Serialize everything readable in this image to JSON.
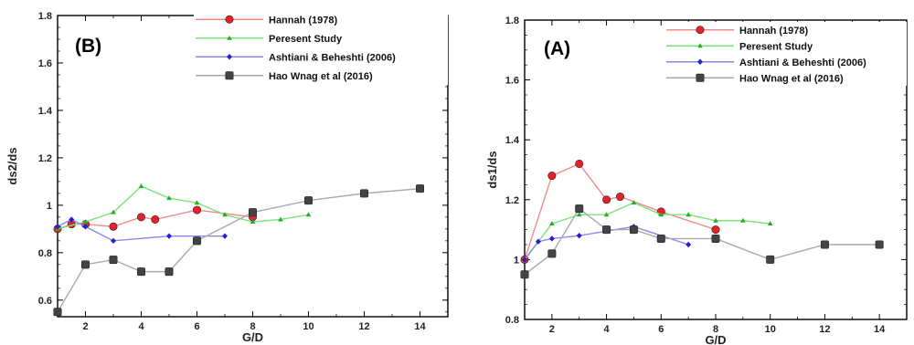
{
  "chart_data": [
    {
      "type": "line",
      "panel_label": "(B)",
      "xlabel": "G/D",
      "ylabel": "ds2/ds",
      "xlim": [
        1,
        15
      ],
      "ylim": [
        0.53,
        1.8
      ],
      "xticks": [
        2,
        4,
        6,
        8,
        10,
        12,
        14
      ],
      "yticks": [
        0.6,
        0.8,
        1,
        1.2,
        1.4,
        1.6,
        1.8
      ],
      "ytick_labels": [
        "0.6",
        "0.8",
        "1",
        "1.2",
        "1.4",
        "1.6",
        "1.8"
      ],
      "legend_position": "top-right",
      "series": [
        {
          "name": "Hannah (1978)",
          "color": "#e8202a",
          "line_color": "#f08c8c",
          "marker": "circle",
          "x": [
            1,
            1.5,
            2,
            3,
            4,
            4.5,
            6,
            8
          ],
          "y": [
            0.9,
            0.92,
            0.92,
            0.91,
            0.95,
            0.94,
            0.98,
            0.95
          ]
        },
        {
          "name": "Peresent Study",
          "color": "#22b022",
          "line_color": "#7ee07e",
          "marker": "triangle",
          "x": [
            1,
            2,
            3,
            4,
            5,
            6,
            7,
            8,
            9,
            10
          ],
          "y": [
            0.9,
            0.93,
            0.97,
            1.08,
            1.03,
            1.01,
            0.96,
            0.93,
            0.94,
            0.96
          ]
        },
        {
          "name": "Ashtiani & Beheshti (2006)",
          "color": "#2222cc",
          "line_color": "#8888e8",
          "marker": "diamond",
          "x": [
            1,
            1.5,
            2,
            3,
            5,
            7
          ],
          "y": [
            0.91,
            0.94,
            0.91,
            0.85,
            0.87,
            0.87
          ]
        },
        {
          "name": "Hao Wnag et al (2016)",
          "color": "#444444",
          "line_color": "#aaaaaa",
          "marker": "square",
          "x": [
            1,
            2,
            3,
            4,
            5,
            6,
            8,
            10,
            12,
            14
          ],
          "y": [
            0.55,
            0.75,
            0.77,
            0.72,
            0.72,
            0.85,
            0.97,
            1.02,
            1.05,
            1.07
          ]
        }
      ]
    },
    {
      "type": "line",
      "panel_label": "(A)",
      "xlabel": "G/D",
      "ylabel": "ds1/ds",
      "xlim": [
        1,
        15
      ],
      "ylim": [
        0.8,
        1.8
      ],
      "xticks": [
        2,
        4,
        6,
        8,
        10,
        12,
        14
      ],
      "yticks": [
        0.8,
        1,
        1.2,
        1.4,
        1.6,
        1.8
      ],
      "ytick_labels": [
        "0.8",
        "1",
        "1.2",
        "1.4",
        "1.6",
        "1.8"
      ],
      "legend_position": "top-right",
      "series": [
        {
          "name": "Hannah (1978)",
          "color": "#e8202a",
          "line_color": "#f08c8c",
          "marker": "circle",
          "x": [
            1,
            2,
            3,
            4,
            4.5,
            6,
            8
          ],
          "y": [
            1.0,
            1.28,
            1.32,
            1.2,
            1.21,
            1.16,
            1.1
          ]
        },
        {
          "name": "Peresent Study",
          "color": "#22b022",
          "line_color": "#7ee07e",
          "marker": "triangle",
          "x": [
            1,
            2,
            3,
            4,
            5,
            6,
            7,
            8,
            9,
            10
          ],
          "y": [
            1.0,
            1.12,
            1.15,
            1.15,
            1.19,
            1.15,
            1.15,
            1.13,
            1.13,
            1.12
          ]
        },
        {
          "name": "Ashtiani & Beheshti (2006)",
          "color": "#2222cc",
          "line_color": "#8888e8",
          "marker": "diamond",
          "x": [
            1,
            1.5,
            2,
            3,
            5,
            7
          ],
          "y": [
            1.0,
            1.06,
            1.07,
            1.08,
            1.11,
            1.05
          ]
        },
        {
          "name": "Hao Wnag et al (2016)",
          "color": "#444444",
          "line_color": "#aaaaaa",
          "marker": "square",
          "x": [
            1,
            2,
            3,
            4,
            5,
            6,
            8,
            10,
            12,
            14
          ],
          "y": [
            0.95,
            1.02,
            1.17,
            1.1,
            1.1,
            1.07,
            1.07,
            1.0,
            1.05,
            1.05
          ]
        }
      ]
    }
  ]
}
